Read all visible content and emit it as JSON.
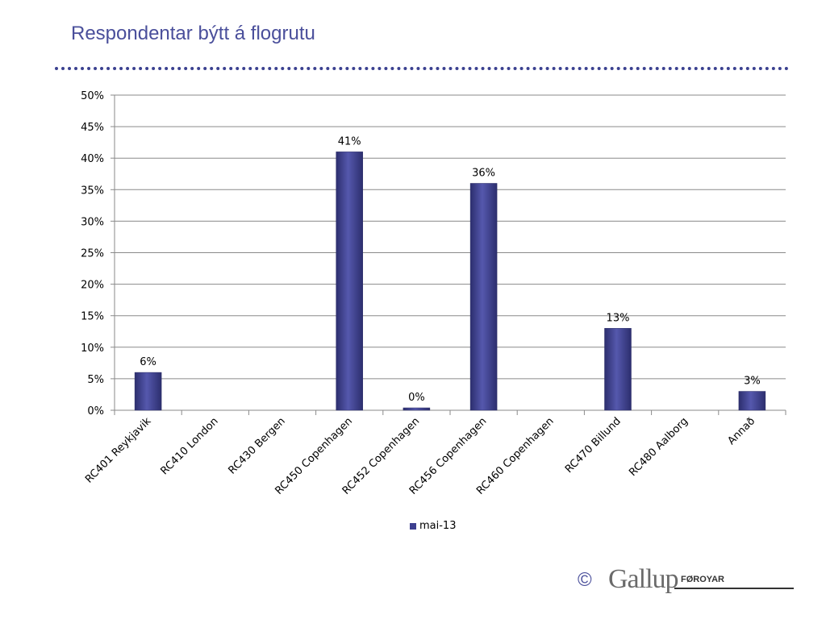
{
  "page": {
    "title": "Respondentar býtt á flogrutu",
    "footer": {
      "copyright": "©",
      "brand": "Gallup",
      "brand_suffix": "FØROYAR"
    }
  },
  "colors": {
    "title": "#4a4f9b",
    "bar": "#3d3f8f",
    "grid": "#8a8a8a"
  },
  "chart_data": {
    "type": "bar",
    "categories": [
      "RC401 Reykjavik",
      "RC410 London",
      "RC430 Bergen",
      "RC450 Copenhagen",
      "RC452 Copenhagen",
      "RC456 Copenhagen",
      "RC460 Copenhagen",
      "RC470 Billund",
      "RC480 Aalborg",
      "Annað"
    ],
    "series": [
      {
        "name": "mai-13",
        "values": [
          6,
          null,
          null,
          41,
          0,
          36,
          null,
          13,
          null,
          3
        ],
        "labels": [
          "6%",
          "",
          "",
          "41%",
          "0%",
          "36%",
          "",
          "13%",
          "",
          "3%"
        ]
      }
    ],
    "ylim": [
      0,
      50
    ],
    "yticks": [
      "0%",
      "5%",
      "10%",
      "15%",
      "20%",
      "25%",
      "30%",
      "35%",
      "40%",
      "45%",
      "50%"
    ],
    "ytick_values": [
      0,
      5,
      10,
      15,
      20,
      25,
      30,
      35,
      40,
      45,
      50
    ],
    "grid": true,
    "legend": "bottom"
  }
}
